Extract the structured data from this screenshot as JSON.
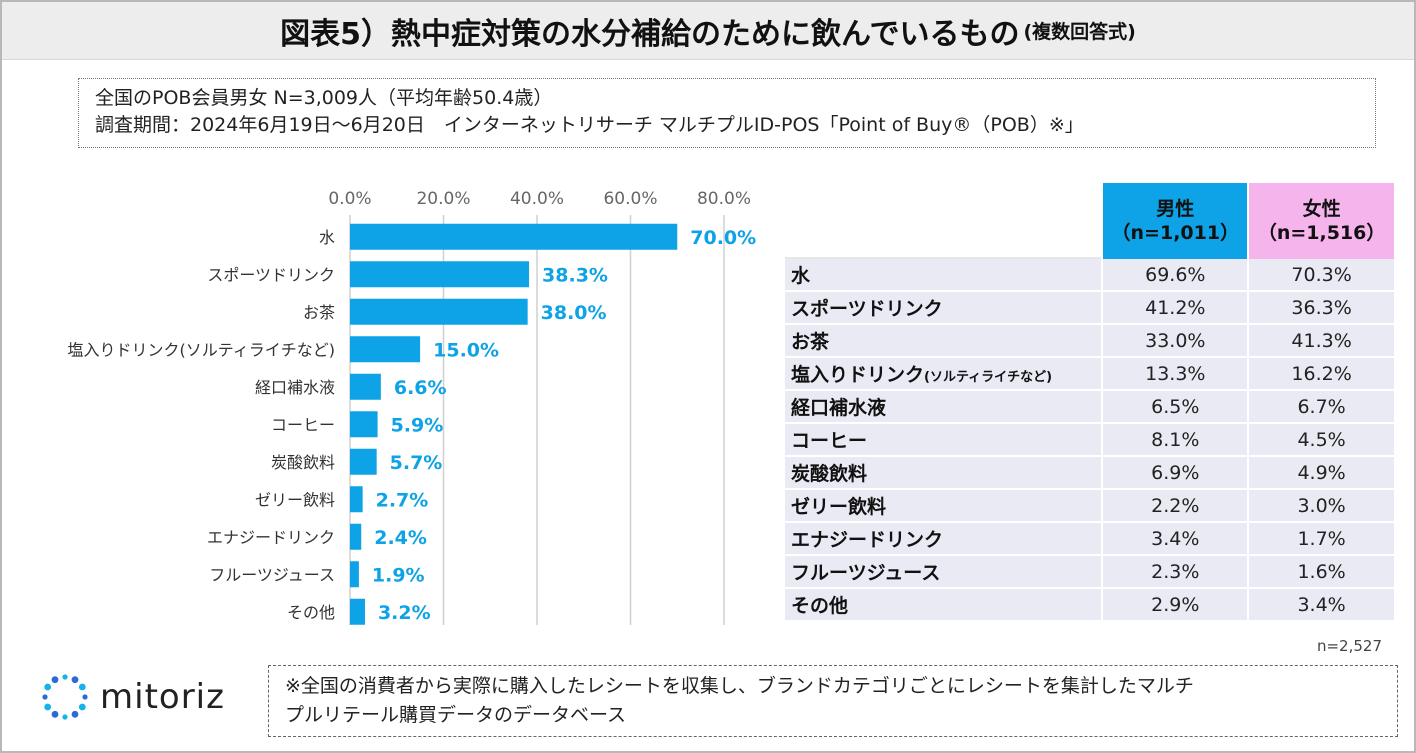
{
  "title": {
    "main": "図表5）熱中症対策の水分補給のために飲んでいるもの",
    "sub": "(複数回答式)"
  },
  "info": {
    "line1": "全国のPOB会員男女 N=3,009人（平均年齢50.4歳）",
    "line2": "調査期間：2024年6月19日～6月20日　インターネットリサーチ マルチプルID-POS「Point of Buy®（POB）※」"
  },
  "colors": {
    "bar": "#0ea2e6",
    "label": "#0ea2e6",
    "male": "#0ea2e6",
    "female": "#f6b4ec",
    "row_bg": "#e9eaf3"
  },
  "chart_data": {
    "type": "bar",
    "orientation": "horizontal",
    "categories": [
      "水",
      "スポーツドリンク",
      "お茶",
      "塩入りドリンク(ソルティライチなど)",
      "経口補水液",
      "コーヒー",
      "炭酸飲料",
      "ゼリー飲料",
      "エナジードリンク",
      "フルーツジュース",
      "その他"
    ],
    "values": [
      70.0,
      38.3,
      38.0,
      15.0,
      6.6,
      5.9,
      5.7,
      2.7,
      2.4,
      1.9,
      3.2
    ],
    "value_labels": [
      "70.0%",
      "38.3%",
      "38.0%",
      "15.0%",
      "6.6%",
      "5.9%",
      "5.7%",
      "2.7%",
      "2.4%",
      "1.9%",
      "3.2%"
    ],
    "xlim": [
      0,
      80
    ],
    "ticks": [
      "0.0%",
      "20.0%",
      "40.0%",
      "60.0%",
      "80.0%"
    ],
    "tick_values": [
      0,
      20,
      40,
      60,
      80
    ],
    "grid": true
  },
  "table": {
    "male_header": "男性",
    "male_n": "（n=1,011）",
    "female_header": "女性",
    "female_n": "（n=1,516）",
    "rows": [
      {
        "label": "水",
        "note": "",
        "male": "69.6%",
        "female": "70.3%"
      },
      {
        "label": "スポーツドリンク",
        "note": "",
        "male": "41.2%",
        "female": "36.3%"
      },
      {
        "label": "お茶",
        "note": "",
        "male": "33.0%",
        "female": "41.3%"
      },
      {
        "label": "塩入りドリンク",
        "note": "(ソルティライチなど)",
        "male": "13.3%",
        "female": "16.2%"
      },
      {
        "label": "経口補水液",
        "note": "",
        "male": "6.5%",
        "female": "6.7%"
      },
      {
        "label": "コーヒー",
        "note": "",
        "male": "8.1%",
        "female": "4.5%"
      },
      {
        "label": "炭酸飲料",
        "note": "",
        "male": "6.9%",
        "female": "4.9%"
      },
      {
        "label": "ゼリー飲料",
        "note": "",
        "male": "2.2%",
        "female": "3.0%"
      },
      {
        "label": "エナジードリンク",
        "note": "",
        "male": "3.4%",
        "female": "1.7%"
      },
      {
        "label": "フルーツジュース",
        "note": "",
        "male": "2.3%",
        "female": "1.6%"
      },
      {
        "label": "その他",
        "note": "",
        "male": "2.9%",
        "female": "3.4%"
      }
    ]
  },
  "n_note": "n=2,527",
  "logo": {
    "icon": "sparkle-ring-icon",
    "text": "mitoriz"
  },
  "footnote": {
    "line1": "※全国の消費者から実際に購入したレシートを収集し、ブランドカテゴリごとにレシートを集計したマルチ",
    "line2": "プルリテール購買データのデータベース"
  }
}
